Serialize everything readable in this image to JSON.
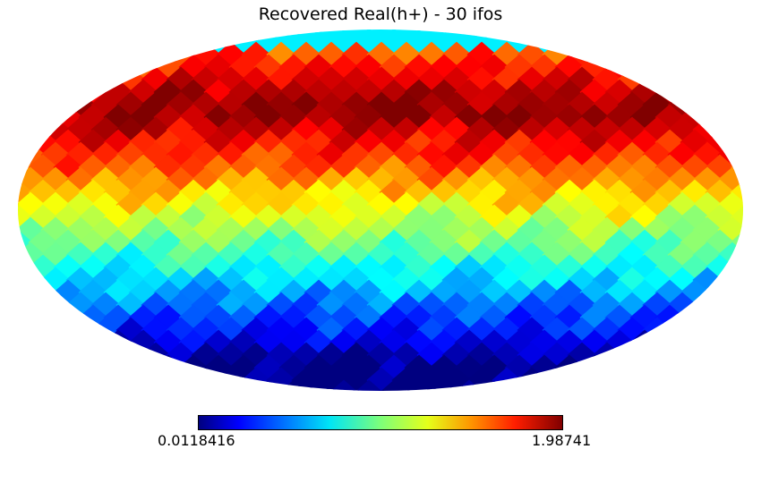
{
  "chart_data": {
    "type": "heatmap",
    "title": "Recovered Real(h+) - 30 ifos",
    "projection": "mollweide",
    "colormap": "jet",
    "colorbar": {
      "min_label": "0.0118416",
      "max_label": "1.98741",
      "min": 0.0118416,
      "max": 1.98741,
      "placement": "bottom"
    },
    "value_trend": "increases from south (~0.01) to north (~1.99), highest near +60° latitude, diamond pixel grid"
  }
}
